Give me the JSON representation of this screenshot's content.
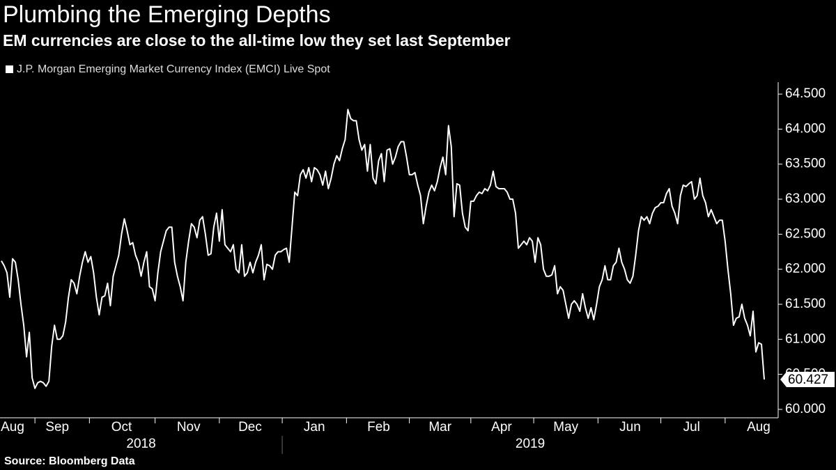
{
  "chart_data": {
    "type": "line",
    "title": "Plumbing the Emerging Depths",
    "subtitle": "EM currencies are close to the all-time low they set last September",
    "source": "Source: Bloomberg Data",
    "years": [
      "2018",
      "2019"
    ],
    "categories": [
      null,
      null,
      null,
      null,
      "Aug",
      null,
      null,
      null,
      null,
      null,
      null,
      null,
      null,
      null,
      null,
      null,
      null,
      null,
      null,
      null,
      "Sep",
      null,
      null,
      null,
      null,
      null,
      null,
      null,
      null,
      null,
      null,
      null,
      null,
      null,
      null,
      null,
      null,
      null,
      null,
      null,
      null,
      null,
      null,
      "Oct",
      null,
      null,
      null,
      null,
      null,
      null,
      null,
      null,
      null,
      null,
      null,
      null,
      null,
      null,
      null,
      null,
      null,
      null,
      null,
      null,
      null,
      null,
      null,
      "Nov",
      null,
      null,
      null,
      null,
      null,
      null,
      null,
      null,
      null,
      null,
      null,
      null,
      null,
      null,
      null,
      null,
      null,
      null,
      null,
      null,
      null,
      "Dec",
      null,
      null,
      null,
      null,
      null,
      null,
      null,
      null,
      null,
      null,
      null,
      null,
      null,
      null,
      null,
      null,
      null,
      null,
      null,
      null,
      null,
      null,
      "Jan",
      null,
      null,
      null,
      null,
      null,
      null,
      null,
      null,
      null,
      null,
      null,
      null,
      null,
      null,
      null,
      null,
      null,
      null,
      null,
      null,
      null,
      null,
      "Feb",
      null,
      null,
      null,
      null,
      null,
      null,
      null,
      null,
      null,
      null,
      null,
      null,
      null,
      null,
      null,
      null,
      null,
      null,
      null,
      null,
      null,
      "Mar",
      null,
      null,
      null,
      null,
      null,
      null,
      null,
      null,
      null,
      null,
      null,
      null,
      null,
      null,
      null,
      null,
      null,
      null,
      null,
      null,
      null,
      "Apr",
      null,
      null,
      null,
      null,
      null,
      null,
      null,
      null,
      null,
      null,
      null,
      null,
      null,
      null,
      null,
      null,
      null,
      null,
      null,
      null,
      null,
      null,
      "May",
      null,
      null,
      null,
      null,
      null,
      null,
      null,
      null,
      null,
      null,
      null,
      null,
      null,
      null,
      null,
      null,
      null,
      null,
      null,
      null,
      null,
      null,
      "Jun",
      null,
      null,
      null,
      null,
      null,
      null,
      null,
      null,
      null,
      null,
      null,
      null,
      null,
      null,
      null,
      null,
      null,
      null,
      null,
      null,
      null,
      "Jul",
      null,
      null,
      null,
      null,
      null,
      null,
      null,
      null,
      null,
      null,
      null,
      null,
      null,
      null,
      null,
      null,
      null,
      null,
      null,
      null,
      null,
      null,
      null,
      "Aug",
      null,
      null
    ],
    "series": [
      {
        "name": "J.P. Morgan Emerging Market Currency Index (EMCI) Live Spot",
        "color": "#ffffff",
        "values": [
          62.12,
          62.05,
          61.95,
          61.6,
          62.15,
          62.1,
          61.85,
          61.5,
          61.2,
          60.75,
          61.1,
          60.45,
          60.3,
          60.38,
          60.4,
          60.38,
          60.33,
          60.4,
          60.9,
          61.2,
          61.0,
          61.0,
          61.05,
          61.25,
          61.6,
          61.85,
          61.8,
          61.65,
          61.9,
          62.1,
          62.25,
          62.1,
          62.18,
          61.95,
          61.6,
          61.35,
          61.6,
          61.62,
          61.8,
          61.48,
          61.9,
          62.05,
          62.2,
          62.5,
          62.72,
          62.55,
          62.35,
          62.38,
          62.2,
          62.1,
          61.9,
          62.1,
          62.25,
          61.75,
          61.72,
          61.55,
          61.95,
          62.25,
          62.4,
          62.55,
          62.6,
          62.6,
          62.1,
          61.9,
          61.75,
          61.55,
          62.1,
          62.4,
          62.65,
          62.6,
          62.45,
          62.7,
          62.75,
          62.5,
          62.2,
          62.22,
          62.6,
          62.8,
          62.4,
          62.85,
          62.35,
          62.3,
          62.25,
          62.35,
          62.0,
          61.95,
          62.35,
          61.9,
          61.95,
          62.1,
          61.95,
          62.1,
          62.2,
          62.35,
          61.85,
          62.07,
          62.05,
          62.0,
          62.2,
          62.25,
          62.25,
          62.28,
          62.3,
          62.1,
          62.6,
          63.1,
          63.05,
          63.35,
          63.42,
          63.3,
          63.45,
          63.25,
          63.45,
          63.42,
          63.35,
          63.2,
          63.4,
          63.15,
          63.3,
          63.5,
          63.62,
          63.55,
          63.72,
          63.85,
          64.28,
          64.15,
          64.12,
          64.12,
          63.85,
          63.7,
          63.78,
          63.4,
          63.78,
          63.3,
          63.22,
          63.55,
          63.65,
          63.25,
          63.7,
          63.72,
          63.5,
          63.6,
          63.75,
          63.82,
          63.82,
          63.6,
          63.35,
          63.35,
          63.38,
          63.2,
          63.05,
          62.65,
          62.9,
          63.1,
          63.2,
          63.12,
          63.25,
          63.45,
          63.6,
          63.35,
          64.05,
          63.75,
          62.75,
          63.22,
          63.2,
          62.8,
          62.6,
          62.55,
          62.97,
          62.97,
          63.05,
          63.1,
          63.08,
          63.15,
          63.12,
          63.2,
          63.4,
          63.18,
          63.15,
          63.15,
          63.15,
          63.1,
          63.0,
          63.0,
          62.8,
          62.3,
          62.35,
          62.4,
          62.35,
          62.45,
          62.4,
          62.1,
          62.45,
          62.35,
          62.0,
          61.9,
          61.9,
          61.92,
          62.05,
          61.65,
          61.75,
          61.7,
          61.5,
          61.3,
          61.5,
          61.55,
          61.5,
          61.4,
          61.65,
          61.45,
          61.3,
          61.45,
          61.28,
          61.5,
          61.75,
          61.85,
          62.05,
          61.85,
          61.85,
          62.05,
          62.1,
          62.3,
          62.1,
          62.0,
          61.85,
          61.8,
          61.9,
          62.2,
          62.55,
          62.75,
          62.7,
          62.75,
          62.65,
          62.8,
          62.88,
          62.9,
          62.95,
          62.95,
          63.08,
          63.15,
          62.9,
          62.8,
          62.65,
          63.05,
          63.2,
          63.18,
          63.22,
          63.25,
          63.0,
          63.05,
          63.3,
          63.05,
          62.95,
          62.75,
          62.85,
          62.75,
          62.65,
          62.7,
          62.7,
          62.4,
          62.0,
          61.65,
          61.2,
          61.3,
          61.32,
          61.5,
          61.3,
          61.2,
          61.05,
          61.4,
          60.82,
          60.95,
          60.93,
          60.427
        ]
      }
    ],
    "ylim": [
      59.88,
      64.67
    ],
    "yticks": [
      {
        "value": 60,
        "label": "60.000"
      },
      {
        "value": 60.5,
        "label": "60.500"
      },
      {
        "value": 61,
        "label": "61.000"
      },
      {
        "value": 61.5,
        "label": "61.500"
      },
      {
        "value": 62,
        "label": "62.000"
      },
      {
        "value": 62.5,
        "label": "62.500"
      },
      {
        "value": 63,
        "label": "63.000"
      },
      {
        "value": 63.5,
        "label": "63.500"
      },
      {
        "value": 64,
        "label": "64.000"
      },
      {
        "value": 64.5,
        "label": "64.500"
      }
    ],
    "grid": false
  }
}
